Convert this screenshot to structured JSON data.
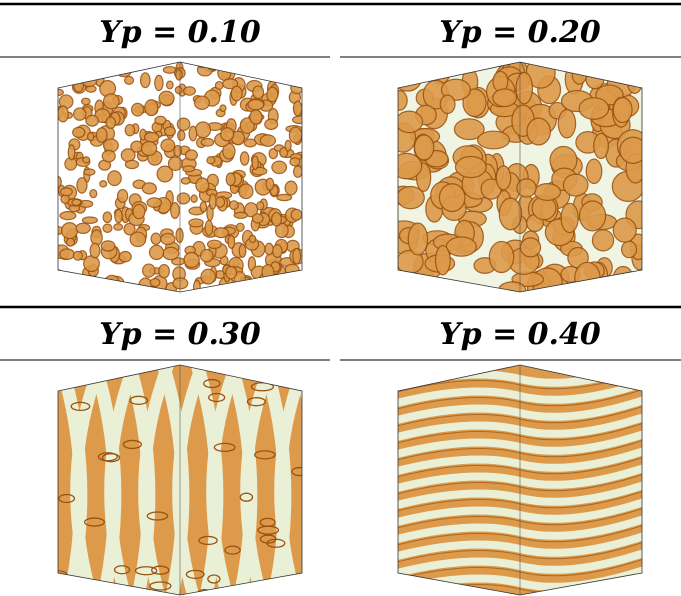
{
  "panels": [
    {
      "label": "Yp = 0.10"
    },
    {
      "label": "Yp = 0.20"
    },
    {
      "label": "Yp = 0.30"
    },
    {
      "label": "Yp = 0.40"
    }
  ]
}
